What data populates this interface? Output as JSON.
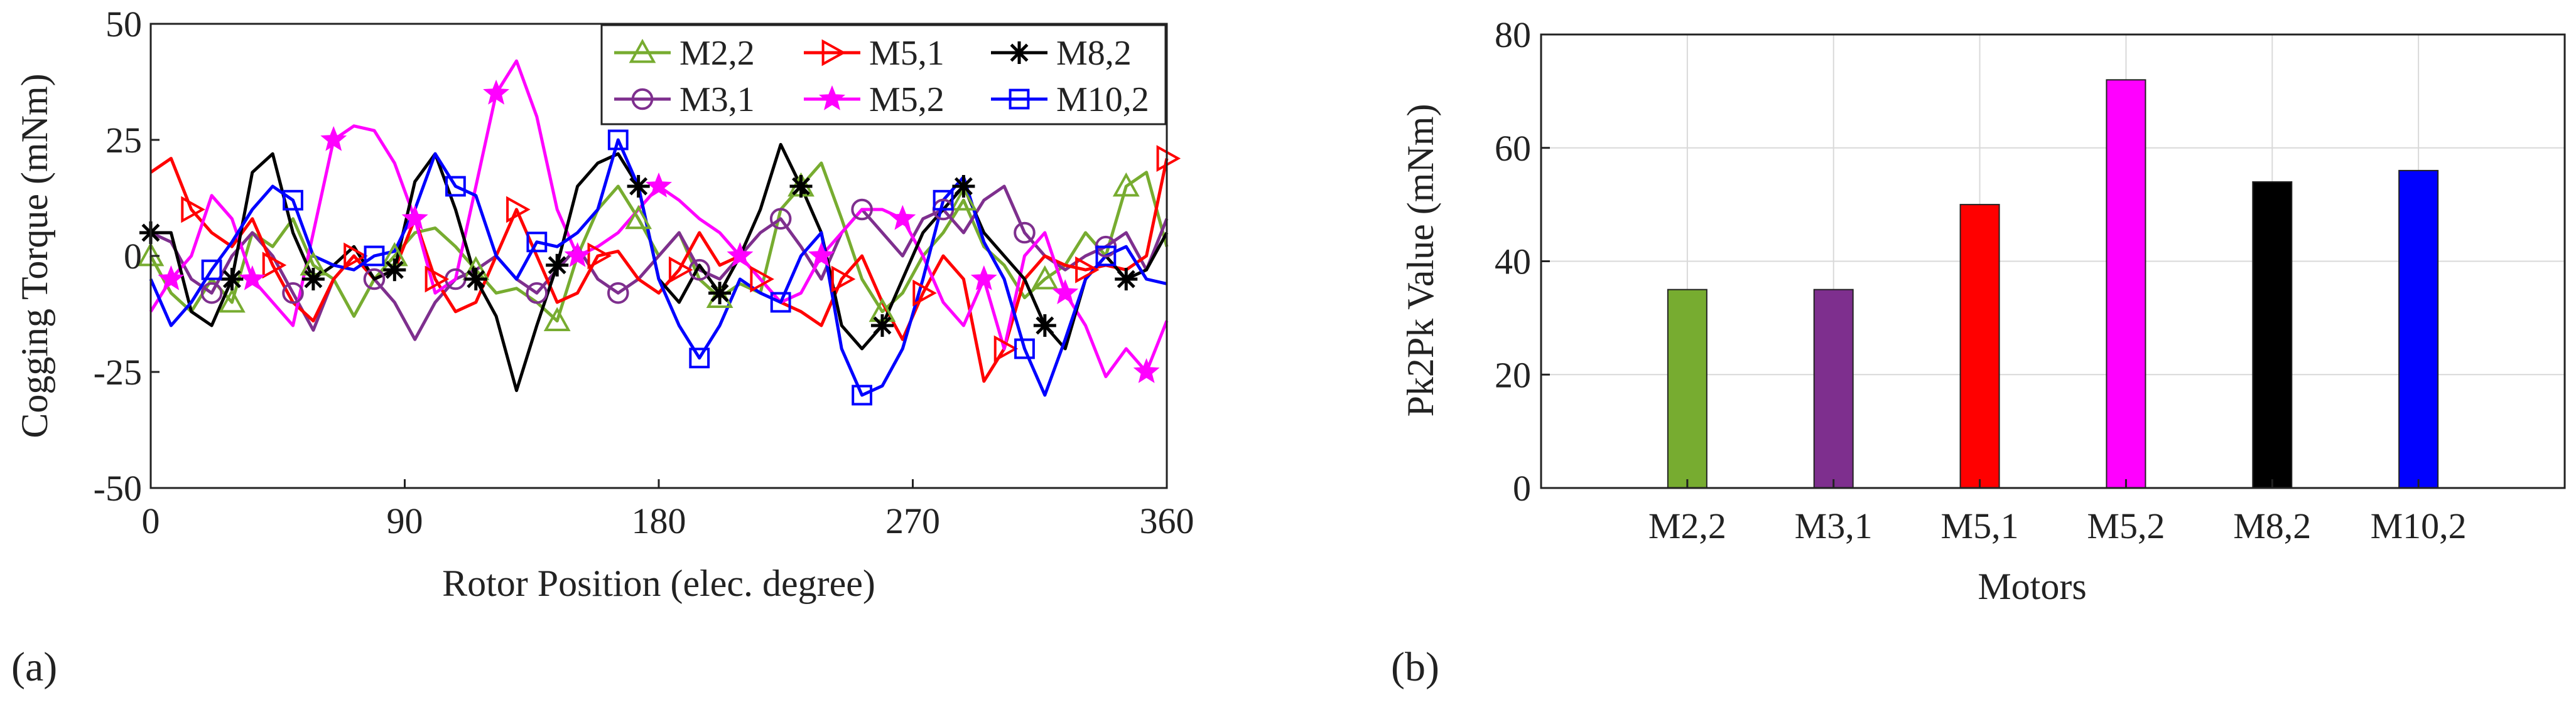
{
  "panel_labels": [
    "(a)",
    "(b)"
  ],
  "chart_data": [
    {
      "type": "line",
      "xlabel": "Rotor Position (elec. degree)",
      "ylabel": "Cogging Torque (mNm)",
      "xlim": [
        0,
        360
      ],
      "ylim": [
        -50,
        50
      ],
      "xticks": [
        "0",
        "90",
        "180",
        "270",
        "360"
      ],
      "xtick_values": [
        0,
        90,
        180,
        270,
        360
      ],
      "yticks": [
        "50",
        "25",
        "0",
        "-25",
        "-50"
      ],
      "ytick_values": [
        50,
        25,
        0,
        -25,
        -50
      ],
      "grid": false,
      "legend_position": "top-right",
      "x": [
        0,
        7.2,
        14.4,
        21.6,
        28.8,
        36,
        43.2,
        50.4,
        57.6,
        64.8,
        72,
        79.2,
        86.4,
        93.6,
        100.8,
        108,
        115.2,
        122.4,
        129.6,
        136.8,
        144,
        151.2,
        158.4,
        165.6,
        172.8,
        180,
        187.2,
        194.4,
        201.6,
        208.8,
        216,
        223.2,
        230.4,
        237.6,
        244.8,
        252,
        259.2,
        266.4,
        273.6,
        280.8,
        288,
        295.2,
        302.4,
        309.6,
        316.8,
        324,
        331.2,
        338.4,
        345.6,
        352.8,
        360
      ],
      "series": [
        {
          "name": "M2,2",
          "color": "#77AC30",
          "marker": "triangle",
          "values": [
            0,
            -8,
            -12,
            -5,
            -10,
            5,
            2,
            8,
            -2,
            -5,
            -13,
            -5,
            0,
            5,
            6,
            2,
            -3,
            -8,
            -7,
            -10,
            -14,
            0,
            10,
            15,
            8,
            0,
            5,
            -5,
            -9,
            -6,
            -8,
            10,
            15,
            20,
            8,
            -5,
            -12,
            -8,
            0,
            5,
            12,
            2,
            -2,
            -9,
            -5,
            -2,
            5,
            0,
            15,
            18,
            2
          ]
        },
        {
          "name": "M3,1",
          "color": "#7E2F8E",
          "marker": "circle",
          "values": [
            5,
            3,
            -5,
            -8,
            0,
            5,
            0,
            -8,
            -16,
            -5,
            0,
            -5,
            -10,
            -18,
            -10,
            -5,
            -3,
            0,
            -5,
            -8,
            -3,
            2,
            -5,
            -8,
            -5,
            0,
            5,
            -3,
            -5,
            0,
            5,
            8,
            2,
            -5,
            5,
            10,
            5,
            0,
            8,
            10,
            5,
            12,
            15,
            5,
            0,
            -3,
            0,
            2,
            5,
            -3,
            8
          ]
        },
        {
          "name": "M5,1",
          "color": "#FF0000",
          "marker": "triangle-right",
          "values": [
            18,
            21,
            10,
            5,
            2,
            8,
            -2,
            -10,
            -14,
            -5,
            0,
            -5,
            -3,
            8,
            -5,
            -12,
            -10,
            0,
            10,
            0,
            -10,
            -8,
            0,
            1,
            -5,
            -8,
            -3,
            5,
            -2,
            0,
            -5,
            -10,
            -12,
            -15,
            -5,
            0,
            -10,
            -18,
            -8,
            0,
            -5,
            -27,
            -20,
            -5,
            0,
            -2,
            -3,
            -2,
            -3,
            0,
            21
          ]
        },
        {
          "name": "M5,2",
          "color": "#FF00FF",
          "marker": "star",
          "values": [
            -12,
            -5,
            0,
            13,
            8,
            -5,
            -10,
            -15,
            5,
            25,
            28,
            27,
            20,
            8,
            -8,
            -5,
            15,
            35,
            42,
            30,
            10,
            0,
            2,
            5,
            10,
            15,
            12,
            8,
            5,
            0,
            -5,
            -10,
            -8,
            0,
            5,
            10,
            10,
            8,
            0,
            -10,
            -15,
            -5,
            -20,
            0,
            5,
            -8,
            -15,
            -26,
            -20,
            -25,
            -14
          ]
        },
        {
          "name": "M8,2",
          "color": "#000000",
          "marker": "asterisk",
          "values": [
            5,
            5,
            -12,
            -15,
            -5,
            18,
            22,
            5,
            -5,
            -2,
            2,
            -5,
            -3,
            16,
            22,
            10,
            -5,
            -13,
            -29,
            -15,
            -2,
            15,
            20,
            22,
            15,
            -5,
            -10,
            -2,
            -8,
            0,
            10,
            24,
            15,
            5,
            -15,
            -20,
            -15,
            -5,
            5,
            10,
            15,
            5,
            0,
            -5,
            -15,
            -20,
            -5,
            0,
            -5,
            -3,
            5
          ]
        },
        {
          "name": "M10,2",
          "color": "#0000FF",
          "marker": "square",
          "values": [
            -5,
            -15,
            -10,
            -3,
            3,
            10,
            15,
            12,
            0,
            -2,
            -3,
            0,
            1,
            10,
            22,
            15,
            13,
            0,
            -5,
            3,
            2,
            5,
            10,
            25,
            15,
            -5,
            -15,
            -22,
            -15,
            -5,
            -8,
            -10,
            0,
            5,
            -20,
            -30,
            -28,
            -20,
            -5,
            12,
            17,
            3,
            -5,
            -20,
            -30,
            -18,
            -5,
            0,
            2,
            -5,
            -6
          ]
        }
      ]
    },
    {
      "type": "bar",
      "xlabel": "Motors",
      "ylabel": "Pk2Pk Value (mNm)",
      "categories": [
        "M2,2",
        "M3,1",
        "M5,1",
        "M5,2",
        "M8,2",
        "M10,2"
      ],
      "values": [
        35,
        35,
        50,
        72,
        54,
        56
      ],
      "colors": [
        "#77AC30",
        "#7E2F8E",
        "#FF0000",
        "#FF00FF",
        "#000000",
        "#0000FF"
      ],
      "ylim": [
        0,
        80
      ],
      "yticks": [
        "80",
        "60",
        "40",
        "20",
        "0"
      ],
      "ytick_values": [
        80,
        60,
        40,
        20,
        0
      ],
      "grid": true
    }
  ]
}
